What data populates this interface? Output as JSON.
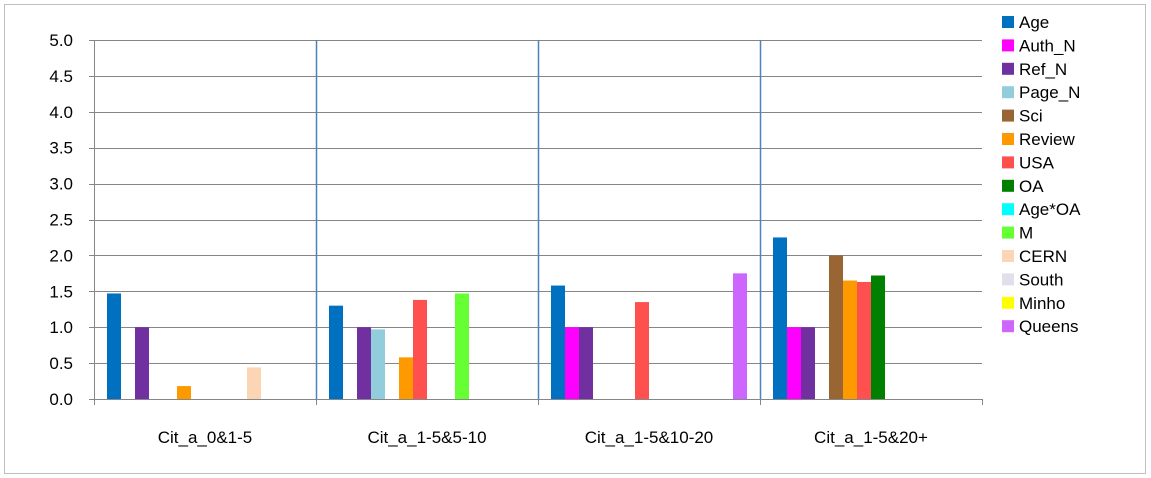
{
  "chart_data": {
    "type": "bar",
    "title": "",
    "xlabel": "",
    "ylabel": "",
    "ylim": [
      0,
      5
    ],
    "y_ticks": [
      "0.0",
      "0.5",
      "1.0",
      "1.5",
      "2.0",
      "2.5",
      "3.0",
      "3.5",
      "4.0",
      "4.5",
      "5.0"
    ],
    "grid": "horizontal",
    "legend_position": "right",
    "categories": [
      "Cit_a_0&1-5",
      "Cit_a_1-5&5-10",
      "Cit_a_1-5&10-20",
      "Cit_a_1-5&20+"
    ],
    "series": [
      {
        "name": "Age",
        "color": "#0070C0",
        "values": [
          1.47,
          1.3,
          1.58,
          2.25
        ]
      },
      {
        "name": "Auth_N",
        "color": "#FF00FF",
        "values": [
          null,
          null,
          1.0,
          1.0
        ]
      },
      {
        "name": "Ref_N",
        "color": "#7030A0",
        "values": [
          1.0,
          1.0,
          1.0,
          1.0
        ]
      },
      {
        "name": "Page_N",
        "color": "#92CDDC",
        "values": [
          null,
          0.97,
          null,
          null
        ]
      },
      {
        "name": "Sci",
        "color": "#996633",
        "values": [
          null,
          null,
          null,
          2.0
        ]
      },
      {
        "name": "Review",
        "color": "#FF9900",
        "values": [
          0.18,
          0.58,
          null,
          1.65
        ]
      },
      {
        "name": "USA",
        "color": "#FF5050",
        "values": [
          null,
          1.38,
          1.35,
          1.63
        ]
      },
      {
        "name": "OA",
        "color": "#008000",
        "values": [
          null,
          null,
          null,
          1.72
        ]
      },
      {
        "name": "Age*OA",
        "color": "#00FFFF",
        "values": [
          null,
          null,
          null,
          null
        ]
      },
      {
        "name": "M",
        "color": "#66FF33",
        "values": [
          null,
          1.47,
          null,
          null
        ]
      },
      {
        "name": "CERN",
        "color": "#FCD5B4",
        "values": [
          0.44,
          null,
          null,
          null
        ]
      },
      {
        "name": "South",
        "color": "#E0E0EB",
        "values": [
          null,
          null,
          null,
          null
        ]
      },
      {
        "name": "Minho",
        "color": "#FFFF00",
        "values": [
          null,
          null,
          null,
          null
        ]
      },
      {
        "name": "Queens",
        "color": "#CC66FF",
        "values": [
          null,
          null,
          1.75,
          null
        ]
      }
    ]
  }
}
